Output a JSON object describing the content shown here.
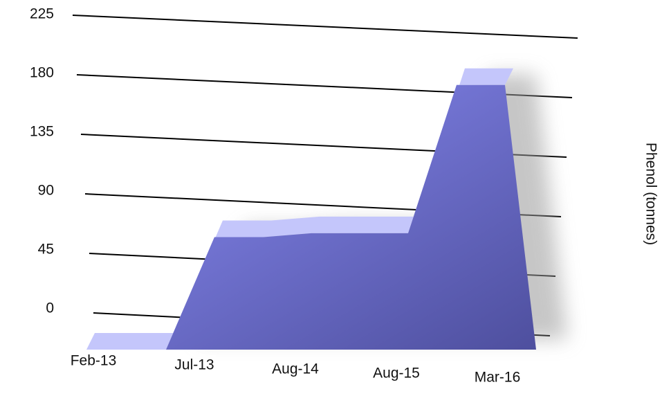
{
  "chart_data": {
    "type": "area",
    "y_axis_label": "Phenol (tonnes)",
    "categories": [
      "Feb-13",
      null,
      "Jul-13",
      null,
      "Aug-14",
      null,
      "Aug-15",
      null,
      "Mar-16"
    ],
    "values": [
      0,
      0,
      85,
      85,
      88,
      88,
      88,
      200,
      200
    ],
    "color": "#7b7de8",
    "ylim": [
      0,
      225
    ],
    "yticks": [
      0,
      45,
      90,
      135,
      180,
      225
    ],
    "grid": true
  }
}
